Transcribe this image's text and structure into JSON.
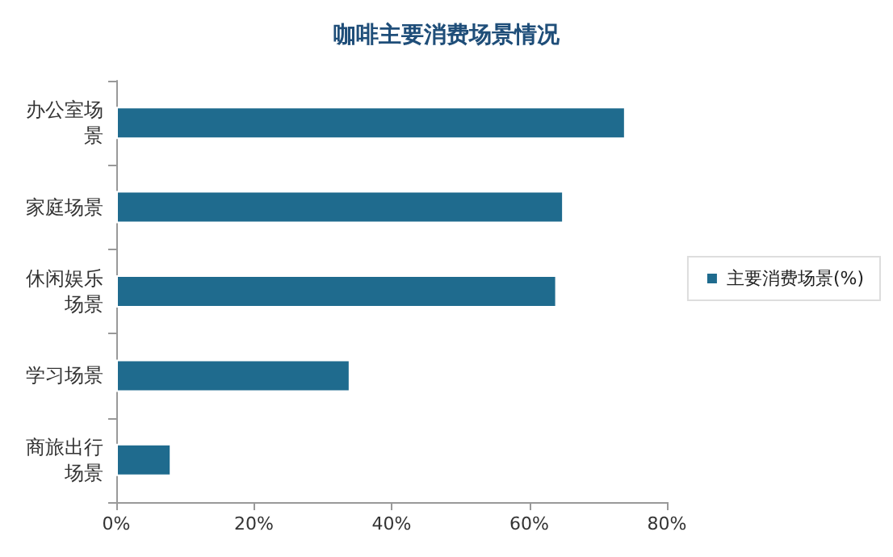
{
  "chart_data": {
    "type": "bar",
    "orientation": "horizontal",
    "title": "咖啡主要消费场景情况",
    "categories": [
      "办公室场景",
      "家庭场景",
      "休闲娱乐场景",
      "学习场景",
      "商旅出行场景"
    ],
    "series": [
      {
        "name": "主要消费场景(%)",
        "color": "#1f6b8e",
        "values": [
          74,
          65,
          64,
          34,
          8
        ]
      }
    ],
    "xlim": [
      0,
      80
    ],
    "xticks": [
      {
        "value": 0,
        "label": "0%"
      },
      {
        "value": 20,
        "label": "20%"
      },
      {
        "value": 40,
        "label": "40%"
      },
      {
        "value": 60,
        "label": "60%"
      },
      {
        "value": 80,
        "label": "80%"
      }
    ],
    "grid": false,
    "legend": "right"
  }
}
